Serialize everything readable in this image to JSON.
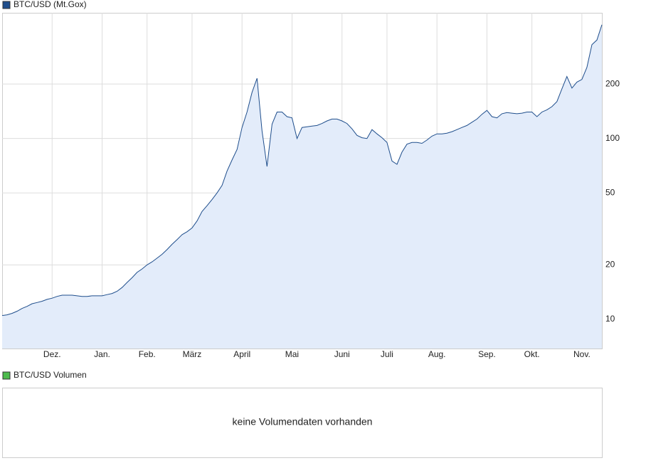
{
  "chart_data": {
    "type": "area",
    "log_scale": true,
    "grid": true,
    "series": [
      {
        "name": "BTC/USD (Mt.Gox)",
        "color": "#1f4e8c",
        "fill": "#e3ecfa",
        "values": [
          10.5,
          10.6,
          10.8,
          11.1,
          11.5,
          11.8,
          12.2,
          12.4,
          12.6,
          12.9,
          13.1,
          13.4,
          13.6,
          13.6,
          13.6,
          13.5,
          13.4,
          13.4,
          13.5,
          13.5,
          13.5,
          13.7,
          13.9,
          14.3,
          15,
          16,
          17,
          18.2,
          19,
          20,
          20.8,
          21.8,
          22.9,
          24.3,
          26,
          27.6,
          29.4,
          30.5,
          32,
          35,
          39.5,
          42.5,
          46,
          50,
          55,
          66,
          76,
          87,
          115,
          140,
          180,
          215,
          110,
          70,
          120,
          140,
          140,
          132,
          130,
          100,
          115,
          116,
          117,
          118,
          121,
          125,
          128,
          128,
          125,
          121,
          113,
          104,
          101,
          100,
          112,
          106,
          101,
          95,
          75,
          72,
          84,
          93,
          95,
          95,
          94,
          98,
          103,
          106,
          106,
          107,
          109,
          112,
          115,
          118,
          123,
          128,
          136,
          143,
          132,
          130,
          137,
          139,
          138,
          137,
          138,
          140,
          140,
          132,
          140,
          144,
          150,
          160,
          188,
          220,
          190,
          205,
          212,
          247,
          330,
          350,
          425
        ]
      }
    ],
    "categories": [
      null,
      null,
      null,
      null,
      null,
      null,
      null,
      null,
      null,
      null,
      "Dez.",
      null,
      null,
      null,
      null,
      null,
      null,
      null,
      null,
      null,
      "Jan.",
      null,
      null,
      null,
      null,
      null,
      null,
      null,
      null,
      "Feb.",
      null,
      null,
      null,
      null,
      null,
      null,
      null,
      null,
      "März",
      null,
      null,
      null,
      null,
      null,
      null,
      null,
      null,
      null,
      "April",
      null,
      null,
      null,
      null,
      null,
      null,
      null,
      null,
      null,
      "Mai",
      null,
      null,
      null,
      null,
      null,
      null,
      null,
      null,
      null,
      "Juni",
      null,
      null,
      null,
      null,
      null,
      null,
      null,
      null,
      "Juli",
      null,
      null,
      null,
      null,
      null,
      null,
      null,
      null,
      null,
      "Aug.",
      null,
      null,
      null,
      null,
      null,
      null,
      null,
      null,
      null,
      "Sep.",
      null,
      null,
      null,
      null,
      null,
      null,
      null,
      null,
      "Okt.",
      null,
      null,
      null,
      null,
      null,
      null,
      null,
      null,
      null,
      "Nov.",
      null,
      null,
      null,
      null
    ],
    "ylim": [
      6.9,
      495
    ],
    "yticks": [
      10,
      20,
      50,
      100,
      200
    ]
  },
  "volume_panel": {
    "legend": "BTC/USD Volumen",
    "color": "#4cbb4c",
    "message": "keine Volumendaten vorhanden"
  }
}
